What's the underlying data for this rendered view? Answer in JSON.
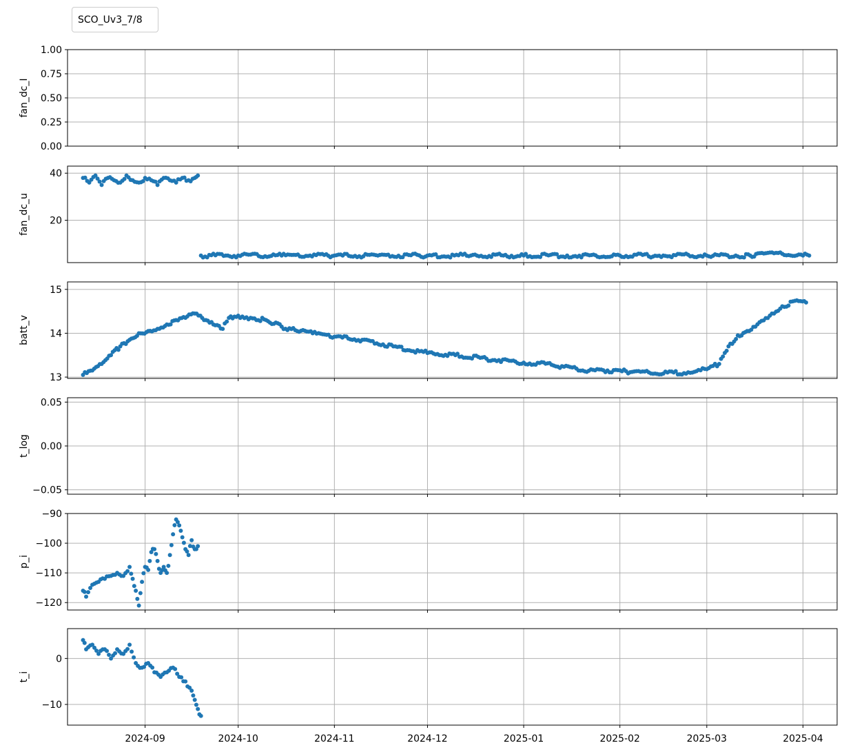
{
  "legend": {
    "label": "SCO_Uv3_7/8"
  },
  "colors": {
    "series": "#1f77b4",
    "grid": "#b0b0b0",
    "axis": "#000000"
  },
  "chart_data": {
    "type": "scatter",
    "x_axis": {
      "type": "date",
      "range": [
        "2024-08-07",
        "2025-04-12"
      ],
      "tick_labels": [
        "2024-09",
        "2024-10",
        "2024-11",
        "2024-12",
        "2025-01",
        "2025-02",
        "2025-03",
        "2025-04"
      ],
      "tick_dates": [
        "2024-09-01",
        "2024-10-01",
        "2024-11-01",
        "2024-12-01",
        "2025-01-01",
        "2025-02-01",
        "2025-03-01",
        "2025-04-01"
      ]
    },
    "grid": true,
    "legend_position": "top-left",
    "panels": [
      {
        "ylabel": "fan_dc_I",
        "ylim": [
          0,
          1
        ],
        "yticks": [
          "0.00",
          "0.25",
          "0.50",
          "0.75",
          "1.00"
        ],
        "ytick_values": [
          0,
          0.25,
          0.5,
          0.75,
          1.0
        ],
        "points": []
      },
      {
        "ylabel": "fan_dc_u",
        "ylim": [
          2,
          43
        ],
        "yticks": [
          "20",
          "40"
        ],
        "ytick_values": [
          20,
          40
        ],
        "points": [
          [
            "2024-08-12",
            38
          ],
          [
            "2024-08-14",
            36
          ],
          [
            "2024-08-16",
            39
          ],
          [
            "2024-08-18",
            35
          ],
          [
            "2024-08-20",
            38
          ],
          [
            "2024-08-22",
            37
          ],
          [
            "2024-08-24",
            36
          ],
          [
            "2024-08-26",
            39
          ],
          [
            "2024-08-28",
            37
          ],
          [
            "2024-08-30",
            36
          ],
          [
            "2024-09-01",
            38
          ],
          [
            "2024-09-03",
            37
          ],
          [
            "2024-09-05",
            35
          ],
          [
            "2024-09-07",
            38
          ],
          [
            "2024-09-09",
            37
          ],
          [
            "2024-09-11",
            36
          ],
          [
            "2024-09-13",
            38
          ],
          [
            "2024-09-15",
            37
          ],
          [
            "2024-09-17",
            38
          ],
          [
            "2024-09-18",
            39
          ],
          [
            "2024-09-19",
            5
          ],
          [
            "2024-10-01",
            5
          ],
          [
            "2024-10-15",
            5
          ],
          [
            "2024-11-01",
            5
          ],
          [
            "2024-11-15",
            5
          ],
          [
            "2024-12-01",
            5
          ],
          [
            "2024-12-15",
            5
          ],
          [
            "2025-01-01",
            5
          ],
          [
            "2025-01-15",
            5
          ],
          [
            "2025-02-01",
            5
          ],
          [
            "2025-02-15",
            5
          ],
          [
            "2025-03-01",
            5
          ],
          [
            "2025-03-15",
            5
          ],
          [
            "2025-03-20",
            6
          ],
          [
            "2025-04-01",
            5
          ],
          [
            "2025-04-03",
            5
          ]
        ]
      },
      {
        "ylabel": "batt_v",
        "ylim": [
          12.97,
          15.17
        ],
        "yticks": [
          "13",
          "14",
          "15"
        ],
        "ytick_values": [
          13,
          14,
          15
        ],
        "points": [
          [
            "2024-08-12",
            13.05
          ],
          [
            "2024-08-15",
            13.15
          ],
          [
            "2024-08-18",
            13.3
          ],
          [
            "2024-08-21",
            13.5
          ],
          [
            "2024-08-24",
            13.7
          ],
          [
            "2024-08-27",
            13.85
          ],
          [
            "2024-08-30",
            14.0
          ],
          [
            "2024-09-02",
            14.05
          ],
          [
            "2024-09-05",
            14.1
          ],
          [
            "2024-09-08",
            14.2
          ],
          [
            "2024-09-11",
            14.3
          ],
          [
            "2024-09-14",
            14.35
          ],
          [
            "2024-09-17",
            14.45
          ],
          [
            "2024-09-20",
            14.3
          ],
          [
            "2024-09-23",
            14.2
          ],
          [
            "2024-09-26",
            14.1
          ],
          [
            "2024-09-28",
            14.35
          ],
          [
            "2024-10-01",
            14.4
          ],
          [
            "2024-10-05",
            14.35
          ],
          [
            "2024-10-10",
            14.3
          ],
          [
            "2024-10-15",
            14.15
          ],
          [
            "2024-10-20",
            14.05
          ],
          [
            "2024-10-25",
            14.0
          ],
          [
            "2024-11-01",
            13.92
          ],
          [
            "2024-11-10",
            13.85
          ],
          [
            "2024-11-20",
            13.7
          ],
          [
            "2024-12-01",
            13.55
          ],
          [
            "2024-12-10",
            13.5
          ],
          [
            "2024-12-20",
            13.42
          ],
          [
            "2025-01-01",
            13.33
          ],
          [
            "2025-01-10",
            13.28
          ],
          [
            "2025-01-20",
            13.15
          ],
          [
            "2025-01-28",
            13.15
          ],
          [
            "2025-02-05",
            13.12
          ],
          [
            "2025-02-15",
            13.08
          ],
          [
            "2025-02-25",
            13.12
          ],
          [
            "2025-03-01",
            13.18
          ],
          [
            "2025-03-05",
            13.3
          ],
          [
            "2025-03-08",
            13.7
          ],
          [
            "2025-03-11",
            13.95
          ],
          [
            "2025-03-14",
            14.05
          ],
          [
            "2025-03-18",
            14.25
          ],
          [
            "2025-03-22",
            14.45
          ],
          [
            "2025-03-26",
            14.6
          ],
          [
            "2025-03-30",
            14.75
          ],
          [
            "2025-04-02",
            14.7
          ]
        ]
      },
      {
        "ylabel": "t_log",
        "ylim": [
          -0.055,
          0.055
        ],
        "yticks": [
          "−0.05",
          "0.00",
          "0.05"
        ],
        "ytick_values": [
          -0.05,
          0,
          0.05
        ],
        "points": []
      },
      {
        "ylabel": "p_i",
        "ylim": [
          -122.5,
          -90
        ],
        "yticks": [
          "−120",
          "−110",
          "−100",
          "−90"
        ],
        "ytick_values": [
          -120,
          -110,
          -100,
          -90
        ],
        "points": [
          [
            "2024-08-12",
            -116
          ],
          [
            "2024-08-13",
            -118
          ],
          [
            "2024-08-15",
            -114
          ],
          [
            "2024-08-17",
            -113
          ],
          [
            "2024-08-19",
            -112
          ],
          [
            "2024-08-21",
            -111
          ],
          [
            "2024-08-23",
            -110
          ],
          [
            "2024-08-25",
            -111
          ],
          [
            "2024-08-27",
            -108
          ],
          [
            "2024-08-28",
            -112
          ],
          [
            "2024-08-29",
            -116
          ],
          [
            "2024-08-30",
            -121
          ],
          [
            "2024-08-31",
            -113
          ],
          [
            "2024-09-01",
            -108
          ],
          [
            "2024-09-02",
            -109
          ],
          [
            "2024-09-03",
            -103
          ],
          [
            "2024-09-04",
            -102
          ],
          [
            "2024-09-05",
            -106
          ],
          [
            "2024-09-06",
            -110
          ],
          [
            "2024-09-07",
            -108
          ],
          [
            "2024-09-08",
            -110
          ],
          [
            "2024-09-09",
            -104
          ],
          [
            "2024-09-10",
            -97
          ],
          [
            "2024-09-11",
            -92
          ],
          [
            "2024-09-12",
            -94
          ],
          [
            "2024-09-13",
            -98
          ],
          [
            "2024-09-14",
            -102
          ],
          [
            "2024-09-15",
            -104
          ],
          [
            "2024-09-16",
            -99
          ],
          [
            "2024-09-17",
            -102
          ],
          [
            "2024-09-18",
            -101
          ]
        ]
      },
      {
        "ylabel": "t_i",
        "ylim": [
          -14.5,
          6.5
        ],
        "yticks": [
          "−10",
          "0"
        ],
        "ytick_values": [
          -10,
          0
        ],
        "points": [
          [
            "2024-08-12",
            4
          ],
          [
            "2024-08-13",
            2
          ],
          [
            "2024-08-15",
            3
          ],
          [
            "2024-08-17",
            1
          ],
          [
            "2024-08-19",
            2
          ],
          [
            "2024-08-21",
            0
          ],
          [
            "2024-08-23",
            2
          ],
          [
            "2024-08-25",
            1
          ],
          [
            "2024-08-27",
            3
          ],
          [
            "2024-08-29",
            -1
          ],
          [
            "2024-08-31",
            -2
          ],
          [
            "2024-09-02",
            -1
          ],
          [
            "2024-09-04",
            -3
          ],
          [
            "2024-09-06",
            -4
          ],
          [
            "2024-09-08",
            -3
          ],
          [
            "2024-09-10",
            -2
          ],
          [
            "2024-09-12",
            -4
          ],
          [
            "2024-09-14",
            -5
          ],
          [
            "2024-09-16",
            -7
          ],
          [
            "2024-09-17",
            -9
          ],
          [
            "2024-09-18",
            -11
          ],
          [
            "2024-09-19",
            -12.5
          ]
        ]
      }
    ]
  }
}
